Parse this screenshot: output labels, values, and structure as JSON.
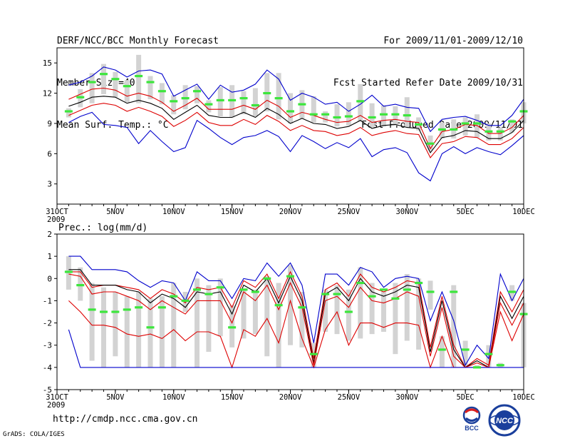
{
  "header": {
    "title": "DERF/NCC/BCC Monthly Forecast",
    "member_size": "Member Size=40",
    "variable": "Mean Surf. Temp.: °C",
    "period": "For 2009/11/01-2009/12/10",
    "start_date": "Fcst Started Refer Date 2009/10/31",
    "produced_date": "Fcst Produced Date 2009/11/01"
  },
  "footer": {
    "url": "http://cmdp.ncc.cma.gov.cn",
    "credit": "GrADS: COLA/IGES",
    "bcc_logo_text": "BCC",
    "ncc_logo_text": "NCC"
  },
  "colors": {
    "box": "#d3d3d3",
    "median": "#3ce63c",
    "outer": "#0000cc",
    "inner": "#dd0000",
    "mean": "#000000"
  },
  "chart_data": [
    {
      "type": "line",
      "title": "Mean Surf. Temp.: °C",
      "x_labels": [
        "31OCT\n2009",
        "5NOV",
        "10NOV",
        "15NOV",
        "20NOV",
        "25NOV",
        "30NOV",
        "5DEC",
        "10DEC"
      ],
      "x_label_days": [
        0,
        5,
        10,
        15,
        20,
        25,
        30,
        35,
        40
      ],
      "xlim": [
        0,
        40
      ],
      "ylim": [
        1,
        16.5
      ],
      "y_ticks": [
        3,
        6,
        9,
        12,
        15
      ],
      "days": [
        1,
        2,
        3,
        4,
        5,
        6,
        7,
        8,
        9,
        10,
        11,
        12,
        13,
        14,
        15,
        16,
        17,
        18,
        19,
        20,
        21,
        22,
        23,
        24,
        25,
        26,
        27,
        28,
        29,
        30,
        31,
        32,
        33,
        34,
        35,
        36,
        37,
        38,
        39,
        40
      ],
      "box_low": [
        9.6,
        10.6,
        11.0,
        11.9,
        11.6,
        11.1,
        11.0,
        11.4,
        10.9,
        9.9,
        10.4,
        11.0,
        10.1,
        9.7,
        9.6,
        9.9,
        9.7,
        10.2,
        9.4,
        9.0,
        9.5,
        9.1,
        9.1,
        8.7,
        8.8,
        9.2,
        8.6,
        8.7,
        8.8,
        8.6,
        8.3,
        6.3,
        7.5,
        7.5,
        7.8,
        7.6,
        7.3,
        7.3,
        8.1,
        9.0
      ],
      "box_high": [
        10.5,
        12.4,
        14.0,
        14.9,
        14.1,
        13.3,
        15.8,
        13.7,
        13.0,
        11.8,
        12.8,
        12.7,
        11.3,
        12.6,
        12.8,
        12.2,
        12.5,
        14.0,
        14.0,
        12.0,
        12.3,
        11.7,
        10.2,
        10.9,
        11.1,
        12.9,
        11.0,
        10.8,
        10.7,
        11.6,
        9.6,
        7.8,
        9.1,
        9.4,
        9.6,
        9.9,
        9.0,
        8.6,
        9.4,
        11.1
      ],
      "median": [
        10.2,
        11.6,
        13.1,
        13.9,
        13.4,
        12.7,
        13.7,
        13.1,
        12.2,
        11.2,
        11.5,
        12.2,
        10.9,
        11.3,
        11.3,
        11.5,
        10.8,
        12.0,
        11.5,
        10.2,
        10.9,
        9.9,
        9.9,
        9.6,
        9.7,
        11.2,
        9.6,
        9.9,
        9.9,
        9.8,
        8.9,
        7.0,
        8.4,
        8.4,
        9.0,
        9.0,
        8.2,
        8.2,
        9.2,
        10.2
      ],
      "series": [
        {
          "name": "max",
          "role": "outer",
          "values": [
            12.8,
            13.1,
            13.7,
            14.6,
            14.3,
            13.6,
            14.2,
            14.3,
            13.9,
            11.7,
            12.3,
            12.9,
            11.4,
            12.8,
            12.1,
            12.3,
            12.9,
            14.3,
            13.4,
            11.3,
            12.0,
            11.6,
            10.9,
            11.1,
            10.2,
            10.9,
            11.8,
            10.7,
            10.9,
            10.6,
            10.5,
            8.2,
            9.4,
            9.6,
            9.7,
            9.3,
            8.8,
            8.8,
            9.8,
            11.4
          ]
        },
        {
          "name": "upper",
          "role": "inner",
          "values": [
            11.4,
            11.9,
            12.4,
            12.5,
            12.3,
            11.7,
            12.0,
            11.7,
            11.1,
            10.2,
            10.8,
            11.5,
            10.4,
            10.4,
            10.4,
            10.8,
            10.4,
            11.3,
            10.7,
            9.6,
            10.1,
            9.8,
            9.4,
            9.1,
            9.2,
            9.8,
            9.1,
            9.3,
            9.4,
            9.2,
            9.1,
            6.5,
            8.2,
            8.4,
            8.9,
            8.8,
            8.0,
            8.0,
            8.6,
            9.8
          ]
        },
        {
          "name": "mean",
          "role": "mean",
          "values": [
            10.7,
            11.1,
            11.6,
            11.7,
            11.6,
            11.0,
            11.3,
            11.0,
            10.5,
            9.4,
            10.1,
            10.8,
            9.8,
            9.6,
            9.6,
            10.1,
            9.6,
            10.5,
            9.9,
            9.0,
            9.5,
            9.0,
            8.9,
            8.5,
            8.7,
            9.3,
            8.5,
            8.8,
            8.9,
            8.6,
            8.5,
            6.1,
            7.6,
            7.8,
            8.3,
            8.2,
            7.5,
            7.5,
            8.1,
            9.3
          ]
        },
        {
          "name": "lower",
          "role": "inner",
          "values": [
            9.8,
            10.3,
            10.8,
            11.0,
            10.8,
            10.2,
            10.6,
            10.2,
            9.7,
            8.7,
            9.3,
            10.1,
            9.1,
            8.8,
            8.8,
            9.4,
            8.9,
            9.8,
            9.2,
            8.3,
            8.8,
            8.3,
            8.2,
            7.8,
            8.0,
            8.6,
            7.8,
            8.1,
            8.3,
            8.0,
            7.9,
            5.6,
            7.0,
            7.2,
            7.7,
            7.6,
            6.9,
            6.9,
            7.5,
            8.6
          ]
        },
        {
          "name": "min",
          "role": "outer",
          "values": [
            9.1,
            9.7,
            10.1,
            8.9,
            8.8,
            8.6,
            7.0,
            8.3,
            7.2,
            6.2,
            6.6,
            9.3,
            8.5,
            7.6,
            6.9,
            7.6,
            7.8,
            8.3,
            7.7,
            6.2,
            7.8,
            7.2,
            6.5,
            7.1,
            6.6,
            7.5,
            5.7,
            6.4,
            6.6,
            6.1,
            4.1,
            3.3,
            6.0,
            6.7,
            6.0,
            6.6,
            6.2,
            5.9,
            6.8,
            7.8
          ]
        }
      ]
    },
    {
      "type": "line",
      "title": "Prec.: log(mm/d)",
      "x_labels": [
        "31OCT\n2009",
        "5NOV",
        "10NOV",
        "15NOV",
        "20NOV",
        "25NOV",
        "30NOV",
        "5DEC",
        "10DEC"
      ],
      "x_label_days": [
        0,
        5,
        10,
        15,
        20,
        25,
        30,
        35,
        40
      ],
      "xlim": [
        0,
        40
      ],
      "ylim": [
        -5,
        2
      ],
      "y_ticks": [
        -5,
        -4,
        -3,
        -2,
        -1,
        0,
        1,
        2
      ],
      "days": [
        1,
        2,
        3,
        4,
        5,
        6,
        7,
        8,
        9,
        10,
        11,
        12,
        13,
        14,
        15,
        16,
        17,
        18,
        19,
        20,
        21,
        22,
        23,
        24,
        25,
        26,
        27,
        28,
        29,
        30,
        31,
        32,
        33,
        34,
        35,
        36,
        37,
        38,
        39,
        40
      ],
      "box_low": [
        -0.5,
        -1.0,
        -3.7,
        -4.0,
        -3.5,
        -4.0,
        -4.0,
        -4.0,
        -4.0,
        -4.0,
        -1.5,
        -4.0,
        -3.3,
        -2.6,
        -3.1,
        -2.7,
        -2.5,
        -3.5,
        -4.0,
        -3.0,
        -3.1,
        -4.0,
        -2.4,
        -2.5,
        -2.8,
        -2.7,
        -2.5,
        -2.4,
        -3.4,
        -2.8,
        -3.2,
        -1.4,
        -4.0,
        -4.0,
        -4.0,
        -4.0,
        -4.0,
        -4.0,
        -1.0,
        -4.0
      ],
      "box_high": [
        1.0,
        0.5,
        -0.2,
        -0.4,
        -0.6,
        -0.8,
        -0.6,
        -0.9,
        -0.8,
        -0.2,
        -0.6,
        0.0,
        -0.3,
        0.0,
        -1.2,
        -0.5,
        -0.5,
        0.1,
        -0.2,
        0.6,
        -0.6,
        -2.9,
        -0.5,
        -0.3,
        -0.5,
        0.5,
        -0.2,
        -0.6,
        -0.2,
        0.2,
        0.0,
        -0.1,
        -2.6,
        -0.3,
        -2.8,
        -3.9,
        -3.0,
        -3.8,
        -0.3,
        -1.1
      ],
      "median": [
        0.3,
        -0.3,
        -1.4,
        -1.5,
        -1.5,
        -1.4,
        -1.3,
        -2.2,
        -1.3,
        -0.8,
        -1.0,
        -0.5,
        -0.7,
        -0.4,
        -2.2,
        -0.5,
        -0.6,
        0.0,
        -1.2,
        0.1,
        -1.3,
        -3.4,
        -0.7,
        -0.7,
        -1.5,
        -0.2,
        -0.8,
        -0.5,
        -0.9,
        -0.5,
        -0.2,
        -0.6,
        -3.2,
        -0.6,
        -3.2,
        -4.0,
        -3.4,
        -3.9,
        -0.6,
        -1.6
      ],
      "series": [
        {
          "name": "max",
          "role": "outer",
          "values": [
            1.0,
            1.0,
            0.4,
            0.4,
            0.4,
            0.3,
            -0.1,
            -0.4,
            -0.1,
            -0.2,
            -1.0,
            0.3,
            -0.1,
            -0.1,
            -0.9,
            0.0,
            -0.1,
            0.7,
            0.1,
            0.7,
            -0.3,
            -2.9,
            0.2,
            0.2,
            -0.3,
            0.5,
            0.3,
            -0.4,
            0.0,
            0.1,
            0.0,
            -1.9,
            -0.6,
            -1.9,
            -3.9,
            -3.0,
            -3.6,
            0.2,
            -1.0,
            0.0
          ]
        },
        {
          "name": "upper",
          "role": "inner",
          "values": [
            0.3,
            0.3,
            -0.4,
            -0.3,
            -0.3,
            -0.4,
            -0.5,
            -0.9,
            -0.5,
            -0.7,
            -1.1,
            -0.4,
            -0.5,
            -0.4,
            -1.3,
            -0.1,
            -0.4,
            0.2,
            -0.9,
            0.3,
            -0.8,
            -3.6,
            -0.5,
            -0.2,
            -0.8,
            0.2,
            -0.4,
            -0.6,
            -0.4,
            -0.1,
            -0.2,
            -3.1,
            -0.8,
            -3.0,
            -4.0,
            -3.6,
            -3.9,
            -0.6,
            -1.5,
            -0.5
          ]
        },
        {
          "name": "mean",
          "role": "mean",
          "values": [
            0.4,
            0.4,
            -0.3,
            -0.3,
            -0.3,
            -0.5,
            -0.6,
            -1.1,
            -0.7,
            -0.9,
            -1.3,
            -0.6,
            -0.7,
            -0.6,
            -1.6,
            -0.3,
            -0.6,
            0.0,
            -1.1,
            0.1,
            -1.0,
            -3.8,
            -0.7,
            -0.4,
            -1.0,
            0.0,
            -0.6,
            -0.8,
            -0.6,
            -0.3,
            -0.4,
            -3.3,
            -1.0,
            -3.2,
            -4.0,
            -3.7,
            -4.0,
            -0.8,
            -1.8,
            -0.8
          ]
        },
        {
          "name": "lower",
          "role": "inner",
          "values": [
            0.2,
            0.1,
            -0.7,
            -0.6,
            -0.6,
            -0.8,
            -1.0,
            -1.4,
            -1.0,
            -1.3,
            -1.6,
            -1.0,
            -1.0,
            -1.0,
            -2.0,
            -0.6,
            -1.0,
            -0.3,
            -1.4,
            -0.2,
            -1.3,
            -3.9,
            -1.0,
            -0.8,
            -1.3,
            -0.4,
            -1.0,
            -1.1,
            -0.9,
            -0.6,
            -0.8,
            -3.5,
            -1.3,
            -3.5,
            -4.0,
            -3.8,
            -4.0,
            -1.1,
            -2.1,
            -1.1
          ]
        },
        {
          "name": "low",
          "role": "inner",
          "values": [
            -1.0,
            -1.5,
            -2.1,
            -2.1,
            -2.2,
            -2.5,
            -2.6,
            -2.5,
            -2.7,
            -2.3,
            -2.8,
            -2.4,
            -2.4,
            -2.6,
            -4.0,
            -2.3,
            -2.6,
            -1.8,
            -2.9,
            -1.0,
            -2.7,
            -4.0,
            -2.3,
            -1.5,
            -3.0,
            -2.0,
            -2.0,
            -2.2,
            -2.0,
            -2.0,
            -2.1,
            -4.0,
            -2.6,
            -4.0,
            -4.0,
            -4.0,
            -4.0,
            -1.5,
            -2.8,
            -1.6
          ]
        },
        {
          "name": "min",
          "role": "outer",
          "values": [
            -2.3,
            -4.0,
            -4.0,
            -4.0,
            -4.0,
            -4.0,
            -4.0,
            -4.0,
            -4.0,
            -4.0,
            -4.0,
            -4.0,
            -4.0,
            -4.0,
            -4.0,
            -4.0,
            -4.0,
            -4.0,
            -4.0,
            -4.0,
            -4.0,
            -4.0,
            -4.0,
            -4.0,
            -4.0,
            -4.0,
            -4.0,
            -4.0,
            -4.0,
            -4.0,
            -4.0,
            -4.0,
            -4.0,
            -4.0,
            -4.0,
            -4.0,
            -4.0,
            -4.0,
            -4.0,
            -4.0
          ]
        }
      ]
    }
  ]
}
